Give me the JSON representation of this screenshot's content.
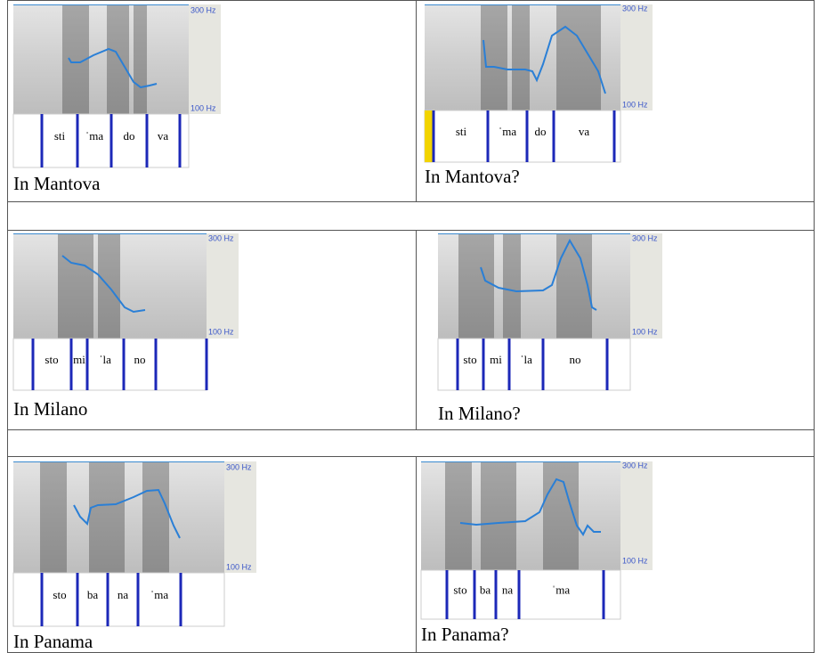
{
  "table": {
    "rows": [
      {
        "cells": [
          {
            "hz_top": "300 Hz",
            "hz_bottom": "100 Hz",
            "syllables": [
              "sti",
              "ˈma",
              "do",
              "va"
            ],
            "caption": "In Mantova"
          },
          {
            "hz_top": "300 Hz",
            "hz_bottom": "100 Hz",
            "syllables": [
              "sti",
              "ˈma",
              "do",
              "va"
            ],
            "caption": "In Mantova?"
          }
        ]
      },
      {
        "cells": [
          {
            "hz_top": "300 Hz",
            "hz_bottom": "100 Hz",
            "syllables": [
              "sto",
              "mi",
              "ˈla",
              "no"
            ],
            "caption": "In Milano"
          },
          {
            "hz_top": "300 Hz",
            "hz_bottom": "100 Hz",
            "syllables": [
              "sto",
              "mi",
              "ˈla",
              "no"
            ],
            "caption": "In Milano?"
          }
        ]
      },
      {
        "cells": [
          {
            "hz_top": "300 Hz",
            "hz_bottom": "100 Hz",
            "syllables": [
              "sto",
              "ba",
              "na",
              "ˈma"
            ],
            "caption": "In Panama"
          },
          {
            "hz_top": "300 Hz",
            "hz_bottom": "100 Hz",
            "syllables": [
              "sto",
              "ba",
              "na",
              "ˈma"
            ],
            "caption": "In Panama?"
          }
        ]
      }
    ]
  }
}
